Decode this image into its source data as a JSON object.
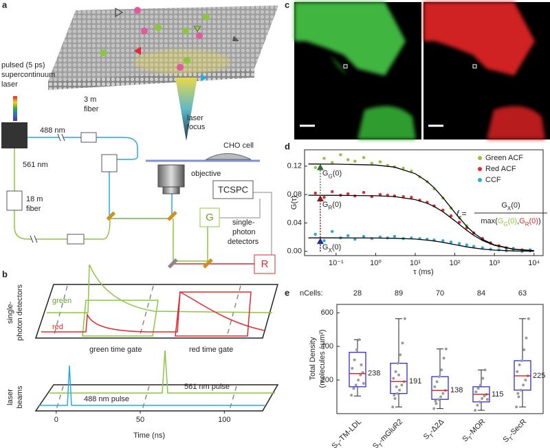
{
  "panel_a": {
    "label": "a",
    "laser": [
      "pulsed (5 ps)",
      "supercontinuum",
      "laser"
    ],
    "wl_488": "488 nm",
    "wl_561": "561 nm",
    "fiber_3m": [
      "3 m",
      "fiber"
    ],
    "fiber_18m": [
      "18 m",
      "fiber"
    ],
    "focus": [
      "laser",
      "focus"
    ],
    "cell": "CHO cell",
    "objective": "objective",
    "tcspc": "TCSPC",
    "det_g": "G",
    "det_r": "R",
    "detectors": [
      "single-",
      "photon",
      "detectors"
    ]
  },
  "panel_b": {
    "label": "b",
    "green": "green",
    "red": "red",
    "detectors": [
      "single-",
      "photon detectors"
    ],
    "green_gate": "green time gate",
    "red_gate": "red time gate",
    "pulse_561": "561 nm pulse",
    "pulse_488": "488 nm pulse",
    "beams": [
      "laser",
      "beams"
    ],
    "x_label": "Time (ns)",
    "xlim": [
      -13,
      124
    ],
    "xticks": [
      0,
      50,
      100
    ]
  },
  "panel_c": {
    "label": "c"
  },
  "chart_data": [
    {
      "type": "scatter",
      "panel_label": "d",
      "y_label": "G(τ)",
      "x_label": "τ (ms)",
      "xlog": true,
      "legend": "upper right",
      "xlim": [
        0.016,
        17000
      ],
      "ylim": [
        -0.006,
        0.143
      ],
      "xticks": [
        {
          "value": 0.1,
          "label": "10⁻¹"
        },
        {
          "value": 1,
          "label": "10⁰"
        },
        {
          "value": 10,
          "label": "10¹"
        },
        {
          "value": 100,
          "label": "10²"
        },
        {
          "value": 1000,
          "label": "10³"
        },
        {
          "value": 10000,
          "label": "10⁴"
        }
      ],
      "yticks": [
        {
          "value": 0,
          "label": "0.00"
        },
        {
          "value": 0.04,
          "label": "0.04"
        },
        {
          "value": 0.08,
          "label": "0.08"
        },
        {
          "value": 0.12,
          "label": "0.12"
        }
      ],
      "x": [
        0.03,
        0.05,
        0.08,
        0.13,
        0.2,
        0.3,
        0.5,
        0.8,
        1.3,
        2,
        3,
        5,
        8,
        13,
        20,
        30,
        50,
        80,
        130,
        200,
        300,
        500,
        800,
        1300,
        2000,
        3000,
        5000,
        8000
      ],
      "series": [
        {
          "name": "Green ACF",
          "color": "#8cc63f",
          "values": [
            0.118,
            0.131,
            0.125,
            0.136,
            0.129,
            0.127,
            0.132,
            0.124,
            0.126,
            0.121,
            0.119,
            0.117,
            0.113,
            0.105,
            0.098,
            0.088,
            0.075,
            0.061,
            0.047,
            0.036,
            0.026,
            0.017,
            0.011,
            0.007,
            0.004,
            0.003,
            0.001,
            0.002
          ]
        },
        {
          "name": "Red ACF",
          "color": "#e0282e",
          "values": [
            0.082,
            0.076,
            0.084,
            0.079,
            0.081,
            0.078,
            0.083,
            0.077,
            0.08,
            0.079,
            0.078,
            0.077,
            0.076,
            0.072,
            0.069,
            0.064,
            0.058,
            0.05,
            0.041,
            0.033,
            0.026,
            0.018,
            0.012,
            0.008,
            0.005,
            0.004,
            0.002,
            0.001
          ]
        },
        {
          "name": "CCF",
          "color": "#27aae1",
          "values": [
            0.024,
            0.015,
            0.028,
            0.019,
            0.022,
            0.017,
            0.021,
            0.018,
            0.02,
            0.019,
            0.021,
            0.018,
            0.019,
            0.018,
            0.017,
            0.016,
            0.015,
            0.013,
            0.011,
            0.009,
            0.007,
            0.005,
            0.003,
            0.002,
            0.001,
            0.003,
            0.0,
            0.002
          ]
        }
      ],
      "fit_x": [
        0.02,
        0.1,
        1,
        3,
        10,
        20,
        30,
        50,
        100,
        200,
        300,
        500,
        1000,
        3000,
        10000
      ],
      "fit_color": "#000000",
      "fits": [
        {
          "values": [
            0.123,
            0.1228,
            0.1215,
            0.1186,
            0.1093,
            0.0984,
            0.0895,
            0.0757,
            0.0547,
            0.0351,
            0.0259,
            0.017,
            0.0091,
            0.0032,
            0.001
          ]
        },
        {
          "values": [
            0.079,
            0.0789,
            0.0783,
            0.0771,
            0.0729,
            0.0677,
            0.0632,
            0.0558,
            0.0431,
            0.0296,
            0.0226,
            0.0153,
            0.0085,
            0.003,
            0.0009
          ]
        },
        {
          "values": [
            0.019,
            0.019,
            0.0188,
            0.0184,
            0.0173,
            0.0158,
            0.0146,
            0.0127,
            0.0095,
            0.0063,
            0.0048,
            0.0032,
            0.0017,
            0.0006,
            0.0002
          ]
        }
      ],
      "annotations": [
        {
          "parts": [
            "G",
            "G",
            "(0)"
          ],
          "x": 0.04,
          "value": 0.123,
          "color": "#2e6b2e"
        },
        {
          "parts": [
            "G",
            "R",
            "(0)"
          ],
          "x": 0.04,
          "value": 0.079,
          "color": "#8b1a1a"
        },
        {
          "parts": [
            "G",
            "X",
            "(0)"
          ],
          "x": 0.04,
          "value": 0.019,
          "color": "#2b2b8f"
        }
      ],
      "formula": {
        "lhs": [
          "f",
          "c",
          "="
        ],
        "numerator": [
          "G",
          "X",
          "(0)"
        ],
        "denominator": [
          "max(",
          "G",
          "G",
          "(0)",
          ",",
          "G",
          "R",
          "(0)",
          ")"
        ]
      }
    },
    {
      "type": "box",
      "panel_label": "e",
      "n_label": "nCells:",
      "y_label": [
        "Total Density",
        "(molecules / µm²)"
      ],
      "ylim": [
        0,
        650
      ],
      "yticks": [
        200,
        400,
        600
      ],
      "box_color": "#2b2bd6",
      "median_color": "#e0282e",
      "point_color": "#9a9a9a",
      "categories": [
        [
          "S",
          "T",
          "-TM-LDL"
        ],
        [
          "S",
          "T",
          "-mGluR2"
        ],
        [
          "S",
          "T",
          "-Δ2Δ"
        ],
        [
          "S",
          "T",
          "-MOR"
        ],
        [
          "S",
          "T",
          "-SecR"
        ]
      ],
      "n": [
        28,
        89,
        70,
        84,
        63
      ],
      "boxes": [
        {
          "min": 105,
          "q1": 160,
          "median": 238,
          "q3": 365,
          "max": 440,
          "points": [
            110,
            150,
            170,
            200,
            230,
            245,
            270,
            320,
            380,
            440,
            290,
            180
          ]
        },
        {
          "min": 40,
          "q1": 120,
          "median": 191,
          "q3": 300,
          "max": 565,
          "points": [
            40,
            90,
            120,
            140,
            170,
            190,
            210,
            250,
            300,
            350,
            420,
            565,
            110,
            160,
            230
          ]
        },
        {
          "min": 30,
          "q1": 85,
          "median": 138,
          "q3": 220,
          "max": 385,
          "points": [
            30,
            60,
            85,
            100,
            120,
            138,
            160,
            190,
            220,
            260,
            330,
            385,
            75
          ]
        },
        {
          "min": 20,
          "q1": 70,
          "median": 115,
          "q3": 160,
          "max": 260,
          "points": [
            20,
            50,
            70,
            90,
            105,
            115,
            130,
            150,
            170,
            210,
            260,
            85
          ]
        },
        {
          "min": 40,
          "q1": 140,
          "median": 225,
          "q3": 315,
          "max": 565,
          "points": [
            40,
            100,
            140,
            170,
            200,
            225,
            250,
            290,
            315,
            380,
            450,
            565,
            120
          ]
        }
      ]
    }
  ]
}
